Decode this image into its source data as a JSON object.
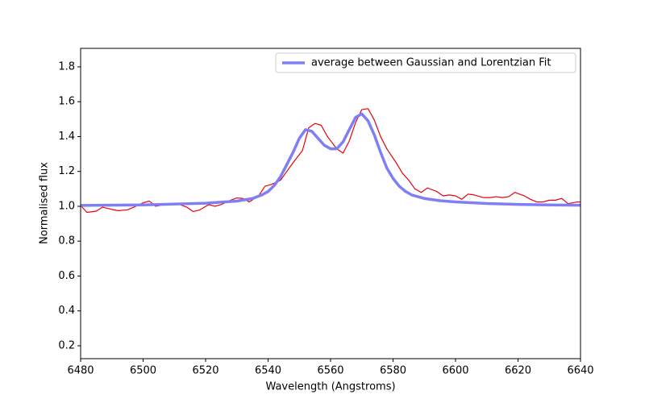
{
  "chart_data": {
    "type": "line",
    "xlabel": "Wavelength (Angstroms)",
    "ylabel": "Normalised flux",
    "xlim": [
      6480,
      6640
    ],
    "xticks": [
      6480,
      6500,
      6520,
      6540,
      6560,
      6580,
      6600,
      6620,
      6640
    ],
    "ylim": [
      0.126,
      1.906
    ],
    "yticks": [
      {
        "value": 0.2,
        "label": "0.2"
      },
      {
        "value": 0.4,
        "label": "0.4"
      },
      {
        "value": 0.6,
        "label": "0.6"
      },
      {
        "value": 0.8,
        "label": "0.8"
      },
      {
        "value": 1.0,
        "label": "1.0"
      },
      {
        "value": 1.2,
        "label": "1.2"
      },
      {
        "value": 1.4,
        "label": "1.4"
      },
      {
        "value": 1.6,
        "label": "1.6"
      },
      {
        "value": 1.8,
        "label": "1.8"
      }
    ],
    "legend": "upper right",
    "series": [
      {
        "color": "#e8000b",
        "width": 1.2,
        "x": [
          6480,
          6482,
          6485,
          6487,
          6490,
          6492,
          6495,
          6497,
          6500,
          6502,
          6504,
          6507,
          6509,
          6511,
          6514,
          6516,
          6518,
          6521,
          6523,
          6525,
          6528,
          6530,
          6532,
          6534,
          6537,
          6539,
          6541,
          6544,
          6546,
          6548,
          6551,
          6553,
          6555,
          6557,
          6559,
          6562,
          6564,
          6566,
          6568,
          6570,
          6572,
          6574,
          6576,
          6578,
          6581,
          6583,
          6585,
          6587,
          6589,
          6591,
          6594,
          6596,
          6598,
          6600,
          6602,
          6604,
          6606,
          6609,
          6611,
          6613,
          6615,
          6617,
          6619,
          6622,
          6624,
          6626,
          6628,
          6630,
          6632,
          6634,
          6636,
          6639,
          6640
        ],
        "values": [
          1.005,
          0.965,
          0.972,
          0.995,
          0.982,
          0.975,
          0.98,
          0.995,
          1.02,
          1.03,
          1.0,
          1.01,
          1.015,
          1.015,
          0.995,
          0.97,
          0.978,
          1.01,
          1.0,
          1.01,
          1.035,
          1.048,
          1.045,
          1.025,
          1.06,
          1.115,
          1.125,
          1.15,
          1.2,
          1.25,
          1.32,
          1.45,
          1.475,
          1.465,
          1.4,
          1.33,
          1.305,
          1.375,
          1.48,
          1.555,
          1.56,
          1.495,
          1.4,
          1.33,
          1.25,
          1.19,
          1.15,
          1.1,
          1.08,
          1.105,
          1.085,
          1.06,
          1.065,
          1.06,
          1.04,
          1.07,
          1.065,
          1.05,
          1.05,
          1.055,
          1.05,
          1.055,
          1.08,
          1.06,
          1.04,
          1.025,
          1.025,
          1.035,
          1.035,
          1.045,
          1.015,
          1.025,
          1.025
        ]
      },
      {
        "name": "average between Gaussian and Lorentzian Fit",
        "color": "#7f7ff5",
        "width": 3.5,
        "x": [
          6480,
          6500,
          6520,
          6530,
          6535,
          6538,
          6540,
          6542,
          6544,
          6546,
          6548,
          6550,
          6552,
          6554,
          6556,
          6558,
          6560,
          6562,
          6564,
          6566,
          6568,
          6570,
          6572,
          6574,
          6576,
          6578,
          6580,
          6582,
          6584,
          6586,
          6590,
          6595,
          6600,
          6610,
          6620,
          6630,
          6640
        ],
        "values": [
          1.005,
          1.008,
          1.018,
          1.03,
          1.045,
          1.065,
          1.085,
          1.12,
          1.17,
          1.24,
          1.31,
          1.39,
          1.44,
          1.43,
          1.39,
          1.35,
          1.33,
          1.33,
          1.37,
          1.44,
          1.51,
          1.53,
          1.49,
          1.41,
          1.31,
          1.22,
          1.16,
          1.115,
          1.085,
          1.065,
          1.045,
          1.032,
          1.025,
          1.016,
          1.011,
          1.008,
          1.006
        ]
      }
    ]
  }
}
